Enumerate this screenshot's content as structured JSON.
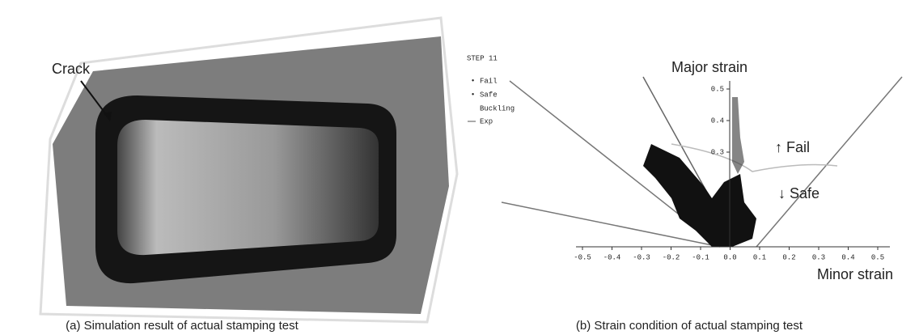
{
  "panel_a": {
    "label": "Crack",
    "caption": "(a) Simulation result of actual stamping test"
  },
  "panel_b": {
    "type": "forming-limit-diagram",
    "step": "STEP 11",
    "legend": [
      "Fail",
      "Safe",
      "Buckling",
      "Exp"
    ],
    "y_label": "Major strain",
    "x_label": "Minor strain",
    "annotations": [
      "↑ Fail",
      "↓ Safe"
    ],
    "xlim": [
      -0.5,
      0.5
    ],
    "ylim": [
      0,
      0.5
    ],
    "xticks": [
      -0.5,
      -0.4,
      -0.3,
      -0.2,
      -0.1,
      {
        "value": 0,
        "label": "0.0"
      },
      0.1,
      0.2,
      0.3,
      0.4,
      0.5
    ],
    "yticks": [
      0.3,
      0.4,
      0.5
    ],
    "caption": "(b) Strain condition of actual stamping test"
  }
}
